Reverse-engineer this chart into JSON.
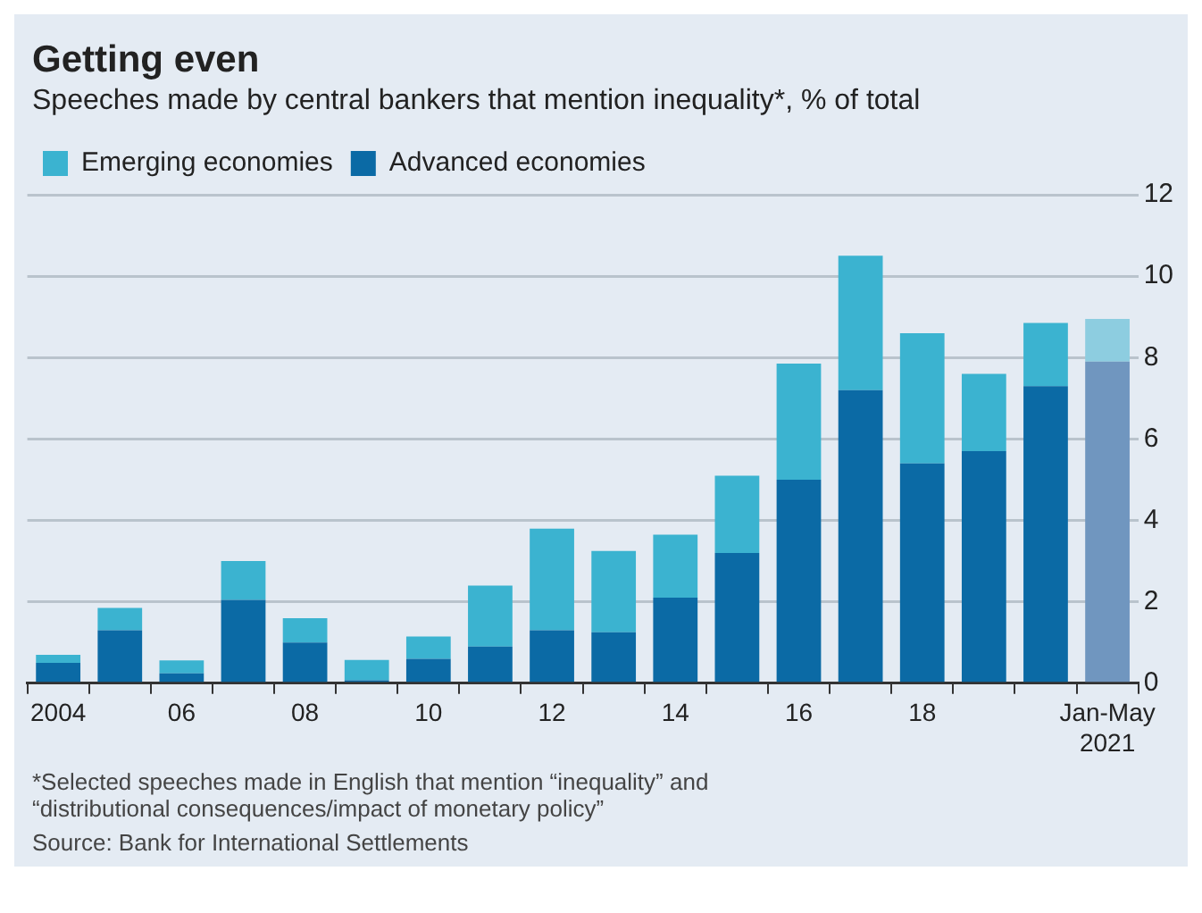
{
  "chart_data": {
    "type": "bar",
    "title": "Getting even",
    "subtitle": "Speeches made by central bankers that mention inequality*, % of total",
    "categories": [
      "2004",
      null,
      "06",
      null,
      "08",
      null,
      "10",
      null,
      "12",
      null,
      "14",
      null,
      "16",
      null,
      "18",
      null,
      null,
      "Jan-May 2021"
    ],
    "stacked": true,
    "series": [
      {
        "name": "Advanced economies",
        "color": "#0b6aa5",
        "colors": [
          "#0b6aa5",
          "#0b6aa5",
          "#0b6aa5",
          "#0b6aa5",
          "#0b6aa5",
          "#0b6aa5",
          "#0b6aa5",
          "#0b6aa5",
          "#0b6aa5",
          "#0b6aa5",
          "#0b6aa5",
          "#0b6aa5",
          "#0b6aa5",
          "#0b6aa5",
          "#0b6aa5",
          "#0b6aa5",
          "#0b6aa5",
          "#7096bf"
        ],
        "values": [
          0.5,
          1.3,
          0.24,
          2.05,
          1.0,
          0.07,
          0.6,
          0.9,
          1.3,
          1.25,
          2.1,
          3.2,
          5.0,
          7.2,
          5.4,
          5.7,
          7.3,
          7.9
        ]
      },
      {
        "name": "Emerging economies",
        "color": "#3bb3d0",
        "colors": [
          "#3bb3d0",
          "#3bb3d0",
          "#3bb3d0",
          "#3bb3d0",
          "#3bb3d0",
          "#3bb3d0",
          "#3bb3d0",
          "#3bb3d0",
          "#3bb3d0",
          "#3bb3d0",
          "#3bb3d0",
          "#3bb3d0",
          "#3bb3d0",
          "#3bb3d0",
          "#3bb3d0",
          "#3bb3d0",
          "#3bb3d0",
          "#8dcde0"
        ],
        "values": [
          0.2,
          0.55,
          0.32,
          0.95,
          0.6,
          0.5,
          0.55,
          1.5,
          2.5,
          2.0,
          1.55,
          1.9,
          2.85,
          3.3,
          3.2,
          1.9,
          1.55,
          1.05
        ]
      }
    ],
    "ylim": [
      0,
      12
    ],
    "yticks": [
      0,
      2,
      4,
      6,
      8,
      10,
      12
    ],
    "grid": "y",
    "legend": "top left",
    "annotations": [
      "*Selected speeches made in English that mention “inequality” and “distributional consequences/impact of monetary policy”",
      "Source: Bank for International Settlements"
    ]
  }
}
